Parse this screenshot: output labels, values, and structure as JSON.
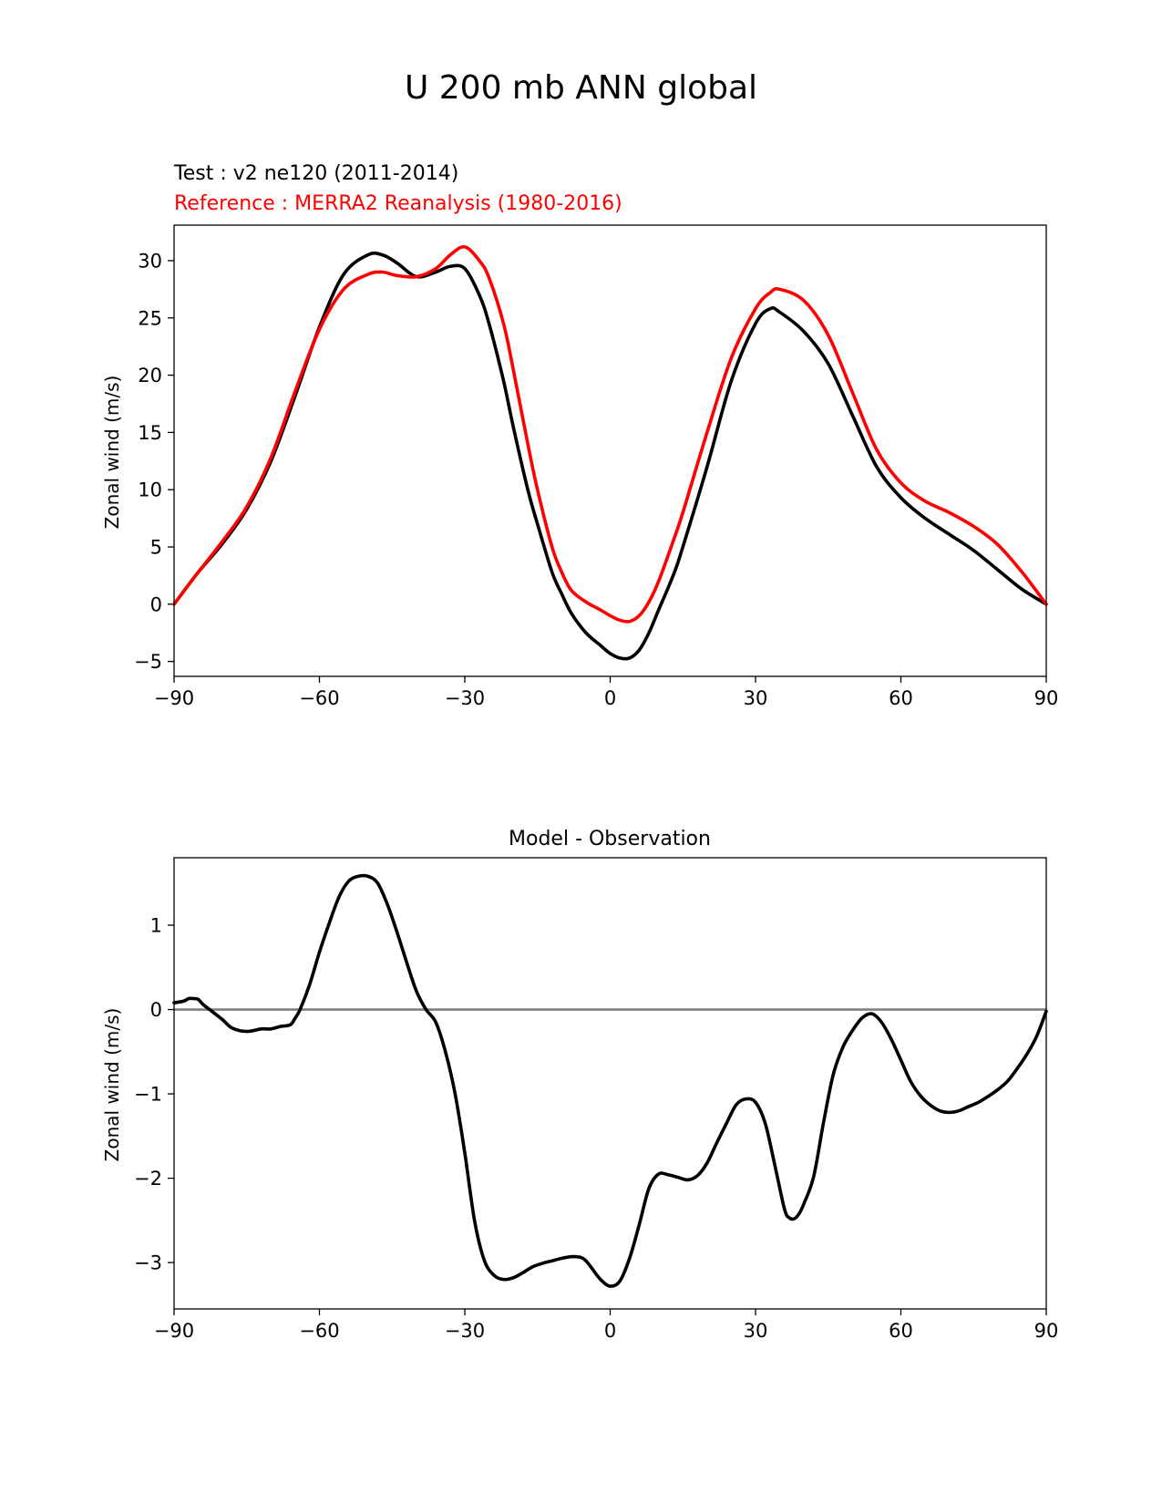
{
  "figure_title": "U 200 mb ANN global",
  "colors": {
    "test": "#000000",
    "reference": "#ff0000",
    "zero_line": "#808080"
  },
  "chart_data": [
    {
      "type": "line",
      "title_lines": [
        "Test : v2 ne120 (2011-2014)",
        "Reference : MERRA2 Reanalysis (1980-2016)"
      ],
      "xlabel": "",
      "ylabel": "Zonal wind (m/s)",
      "xlim": [
        -90,
        90
      ],
      "ylim": [
        -6.3,
        33.1
      ],
      "xticks": [
        -90,
        -60,
        -30,
        0,
        30,
        60,
        90
      ],
      "xtick_labels": [
        "−90",
        "−60",
        "−30",
        "0",
        "30",
        "60",
        "90"
      ],
      "yticks": [
        -5,
        0,
        5,
        10,
        15,
        20,
        25,
        30
      ],
      "ytick_labels": [
        "−5",
        "0",
        "5",
        "10",
        "15",
        "20",
        "25",
        "30"
      ],
      "series": [
        {
          "name": "Test : v2 ne120 (2011-2014)",
          "color": "#000000",
          "x": [
            -90,
            -85,
            -80,
            -75,
            -70,
            -65,
            -60,
            -55,
            -50,
            -47,
            -44,
            -40,
            -36,
            -33,
            -30,
            -27,
            -25,
            -22,
            -20,
            -17,
            -15,
            -12,
            -10,
            -8,
            -5,
            -2,
            0,
            2,
            4,
            6,
            8,
            10,
            13,
            15,
            20,
            25,
            30,
            33,
            35,
            40,
            45,
            50,
            55,
            60,
            65,
            70,
            75,
            80,
            85,
            90
          ],
          "y": [
            0,
            2.8,
            5.3,
            8.3,
            12.5,
            18.2,
            24.2,
            28.8,
            30.5,
            30.5,
            29.8,
            28.6,
            29,
            29.5,
            29.3,
            27,
            24.5,
            19.5,
            15.5,
            10,
            7,
            2.8,
            0.9,
            -0.8,
            -2.5,
            -3.6,
            -4.3,
            -4.7,
            -4.7,
            -4,
            -2.5,
            -0.5,
            2.5,
            5,
            12,
            19.5,
            24.5,
            25.8,
            25.5,
            23.8,
            21,
            16.5,
            12,
            9.3,
            7.5,
            6.1,
            4.7,
            3,
            1.3,
            0
          ]
        },
        {
          "name": "Reference : MERRA2 Reanalysis (1980-2016)",
          "color": "#ff0000",
          "x": [
            -90,
            -85,
            -80,
            -75,
            -70,
            -65,
            -60,
            -55,
            -50,
            -47,
            -44,
            -40,
            -36,
            -33,
            -30,
            -27,
            -25,
            -22,
            -20,
            -17,
            -15,
            -12,
            -10,
            -8,
            -5,
            -2,
            0,
            2,
            4,
            6,
            8,
            10,
            13,
            15,
            20,
            25,
            30,
            33,
            35,
            40,
            45,
            50,
            55,
            60,
            65,
            70,
            75,
            80,
            85,
            90
          ],
          "y": [
            0,
            2.8,
            5.5,
            8.5,
            12.8,
            18.6,
            24,
            27.5,
            28.8,
            29,
            28.7,
            28.6,
            29.3,
            30.5,
            31.2,
            30,
            28.5,
            24.5,
            20.5,
            14,
            10,
            5,
            2.8,
            1.2,
            0.2,
            -0.5,
            -1,
            -1.4,
            -1.5,
            -1,
            0.2,
            2,
            5.5,
            8,
            15,
            21.5,
            25.8,
            27.2,
            27.5,
            26.5,
            23.5,
            18.5,
            13.5,
            10.6,
            9,
            8,
            6.8,
            5.2,
            2.8,
            0
          ]
        }
      ]
    },
    {
      "type": "line",
      "title": "Model - Observation",
      "xlabel": "",
      "ylabel": "Zonal wind (m/s)",
      "xlim": [
        -90,
        90
      ],
      "ylim": [
        -3.55,
        1.8
      ],
      "xticks": [
        -90,
        -60,
        -30,
        0,
        30,
        60,
        90
      ],
      "xtick_labels": [
        "−90",
        "−60",
        "−30",
        "0",
        "30",
        "60",
        "90"
      ],
      "yticks": [
        -3,
        -2,
        -1,
        0,
        1
      ],
      "ytick_labels": [
        "−3",
        "−2",
        "−1",
        "0",
        "1"
      ],
      "zero_line": 0,
      "series": [
        {
          "name": "Model - Observation",
          "color": "#000000",
          "x": [
            -90,
            -88,
            -87,
            -86,
            -85,
            -84,
            -82,
            -80,
            -78,
            -75,
            -72,
            -70,
            -68,
            -66,
            -65,
            -64,
            -62,
            -60,
            -58,
            -56,
            -54,
            -52,
            -50,
            -48,
            -46,
            -44,
            -42,
            -40,
            -38,
            -36,
            -34,
            -32,
            -30,
            -28,
            -26,
            -24,
            -22,
            -20,
            -18,
            -16,
            -14,
            -12,
            -10,
            -8,
            -6,
            -5,
            -4,
            -2,
            0,
            2,
            4,
            6,
            8,
            10,
            12,
            14,
            16,
            18,
            20,
            22,
            24,
            26,
            28,
            30,
            32,
            34,
            36,
            37,
            38,
            39,
            40,
            42,
            44,
            46,
            48,
            50,
            52,
            54,
            56,
            58,
            60,
            62,
            64,
            66,
            68,
            70,
            72,
            74,
            76,
            78,
            80,
            82,
            84,
            86,
            88,
            90
          ],
          "y": [
            0.08,
            0.1,
            0.13,
            0.13,
            0.12,
            0.06,
            -0.03,
            -0.12,
            -0.22,
            -0.26,
            -0.23,
            -0.23,
            -0.2,
            -0.18,
            -0.1,
            0,
            0.3,
            0.68,
            1.02,
            1.33,
            1.52,
            1.58,
            1.58,
            1.5,
            1.25,
            0.92,
            0.56,
            0.22,
            0,
            -0.15,
            -0.5,
            -1,
            -1.7,
            -2.5,
            -2.97,
            -3.15,
            -3.2,
            -3.18,
            -3.12,
            -3.05,
            -3.01,
            -2.98,
            -2.95,
            -2.93,
            -2.94,
            -2.98,
            -3.05,
            -3.2,
            -3.28,
            -3.22,
            -2.95,
            -2.55,
            -2.12,
            -1.95,
            -1.96,
            -1.99,
            -2.02,
            -1.97,
            -1.82,
            -1.58,
            -1.35,
            -1.13,
            -1.06,
            -1.1,
            -1.35,
            -1.85,
            -2.37,
            -2.47,
            -2.48,
            -2.42,
            -2.3,
            -1.98,
            -1.35,
            -0.78,
            -0.45,
            -0.25,
            -0.1,
            -0.05,
            -0.15,
            -0.35,
            -0.6,
            -0.85,
            -1.02,
            -1.13,
            -1.2,
            -1.22,
            -1.2,
            -1.15,
            -1.1,
            -1.03,
            -0.95,
            -0.85,
            -0.7,
            -0.53,
            -0.32,
            -0.02
          ]
        }
      ]
    }
  ]
}
